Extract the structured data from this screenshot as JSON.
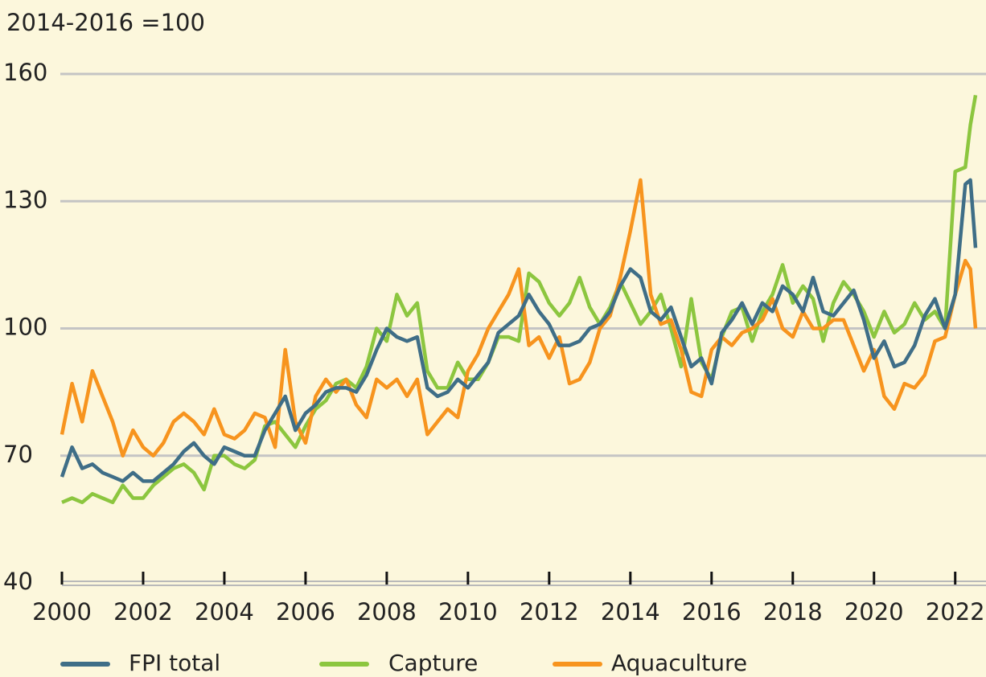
{
  "chart_data": {
    "type": "line",
    "y_label": "2014-2016 =100",
    "x": [
      2000,
      2000.25,
      2000.5,
      2000.75,
      2001,
      2001.25,
      2001.5,
      2001.75,
      2002,
      2002.25,
      2002.5,
      2002.75,
      2003,
      2003.25,
      2003.5,
      2003.75,
      2004,
      2004.25,
      2004.5,
      2004.75,
      2005,
      2005.25,
      2005.5,
      2005.75,
      2006,
      2006.25,
      2006.5,
      2006.75,
      2007,
      2007.25,
      2007.5,
      2007.75,
      2008,
      2008.25,
      2008.5,
      2008.75,
      2009,
      2009.25,
      2009.5,
      2009.75,
      2010,
      2010.25,
      2010.5,
      2010.75,
      2011,
      2011.25,
      2011.5,
      2011.75,
      2012,
      2012.25,
      2012.5,
      2012.75,
      2013,
      2013.25,
      2013.5,
      2013.75,
      2014,
      2014.25,
      2014.5,
      2014.75,
      2015,
      2015.25,
      2015.5,
      2015.75,
      2016,
      2016.25,
      2016.5,
      2016.75,
      2017,
      2017.25,
      2017.5,
      2017.75,
      2018,
      2018.25,
      2018.5,
      2018.75,
      2019,
      2019.25,
      2019.5,
      2019.75,
      2020,
      2020.25,
      2020.5,
      2020.75,
      2021,
      2021.25,
      2021.5,
      2021.75,
      2022,
      2022.25,
      2022.375,
      2022.5
    ],
    "series": [
      {
        "name": "FPI total",
        "color": "#3f6e87",
        "values": [
          65,
          72,
          67,
          68,
          66,
          65,
          64,
          66,
          64,
          64,
          66,
          68,
          71,
          73,
          70,
          68,
          72,
          71,
          70,
          70,
          76,
          80,
          84,
          76,
          80,
          82,
          85,
          86,
          86,
          85,
          89,
          95,
          100,
          98,
          97,
          98,
          86,
          84,
          85,
          88,
          86,
          89,
          92,
          99,
          101,
          103,
          108,
          104,
          101,
          96,
          96,
          97,
          100,
          101,
          104,
          110,
          114,
          112,
          104,
          102,
          105,
          98,
          91,
          93,
          87,
          99,
          102,
          106,
          101,
          106,
          104,
          110,
          108,
          104,
          112,
          104,
          103,
          106,
          109,
          102,
          93,
          97,
          91,
          92,
          96,
          103,
          107,
          100,
          108,
          134,
          135,
          119
        ]
      },
      {
        "name": "Capture",
        "color": "#8cc63f",
        "values": [
          59,
          60,
          59,
          61,
          60,
          59,
          63,
          60,
          60,
          63,
          65,
          67,
          68,
          66,
          62,
          70,
          70,
          68,
          67,
          69,
          77,
          78,
          75,
          72,
          77,
          81,
          83,
          87,
          88,
          86,
          91,
          100,
          97,
          108,
          103,
          106,
          90,
          86,
          86,
          92,
          88,
          88,
          92,
          98,
          98,
          97,
          113,
          111,
          106,
          103,
          106,
          112,
          105,
          101,
          105,
          111,
          106,
          101,
          104,
          108,
          100,
          91,
          107,
          92,
          88,
          98,
          104,
          105,
          97,
          104,
          108,
          115,
          106,
          110,
          107,
          97,
          106,
          111,
          108,
          104,
          98,
          104,
          99,
          101,
          106,
          102,
          104,
          100,
          137,
          138,
          148,
          155
        ]
      },
      {
        "name": "Aquaculture",
        "color": "#f7941e",
        "values": [
          75,
          87,
          78,
          90,
          84,
          78,
          70,
          76,
          72,
          70,
          73,
          78,
          80,
          78,
          75,
          81,
          75,
          74,
          76,
          80,
          79,
          72,
          95,
          78,
          73,
          84,
          88,
          85,
          88,
          82,
          79,
          88,
          86,
          88,
          84,
          88,
          75,
          78,
          81,
          79,
          90,
          94,
          100,
          104,
          108,
          114,
          96,
          98,
          93,
          98,
          87,
          88,
          92,
          100,
          103,
          112,
          123,
          135,
          108,
          101,
          102,
          95,
          85,
          84,
          95,
          98,
          96,
          99,
          100,
          102,
          107,
          100,
          98,
          104,
          100,
          100,
          102,
          102,
          96,
          90,
          95,
          84,
          81,
          87,
          86,
          89,
          97,
          98,
          108,
          116,
          114,
          100
        ]
      }
    ],
    "xlim": [
      2000,
      2022.6
    ],
    "xticks": [
      2000,
      2002,
      2004,
      2006,
      2008,
      2010,
      2012,
      2014,
      2016,
      2018,
      2020,
      2022
    ],
    "ylim": [
      40,
      160
    ],
    "yticks": [
      40,
      70,
      100,
      130,
      160
    ],
    "grid": true,
    "legend": "bottom"
  }
}
